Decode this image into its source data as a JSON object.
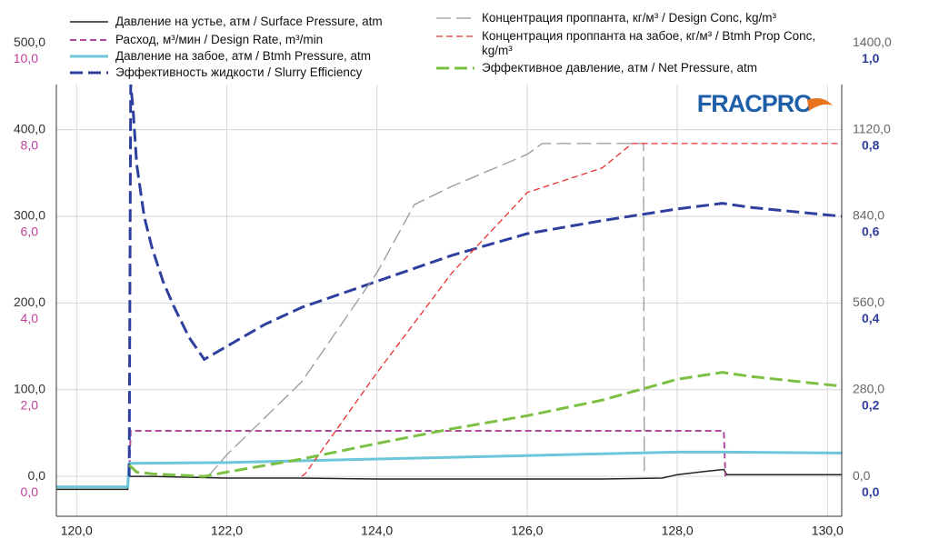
{
  "logo": "FRACPRO",
  "chart_data": {
    "type": "line",
    "grid": true,
    "xlim": [
      119.73,
      130.19
    ],
    "xticks": [
      {
        "value": 120,
        "label": "120,0"
      },
      {
        "value": 122,
        "label": "122,0"
      },
      {
        "value": 124,
        "label": "124,0"
      },
      {
        "value": 126,
        "label": "126,0"
      },
      {
        "value": 128,
        "label": "128,0"
      },
      {
        "value": 130,
        "label": "130,0"
      }
    ],
    "ylim": [
      -46,
      452
    ],
    "yticks": [
      {
        "value": 0,
        "label": "0,0"
      },
      {
        "value": 100,
        "label": "100,0"
      },
      {
        "value": 200,
        "label": "200,0"
      },
      {
        "value": 300,
        "label": "300,0"
      },
      {
        "value": 400,
        "label": "400,0"
      },
      {
        "value": 500,
        "label": "500,0"
      }
    ],
    "ylim_rate": [
      -0.92,
      9.04
    ],
    "yticks_rate": [
      {
        "value": 0,
        "label": "0,0"
      },
      {
        "value": 2,
        "label": "2,0"
      },
      {
        "value": 4,
        "label": "4,0"
      },
      {
        "value": 6,
        "label": "6,0"
      },
      {
        "value": 8,
        "label": "8,0"
      },
      {
        "value": 10,
        "label": "10,0"
      }
    ],
    "y2lim": [
      -128.8,
      1265.6
    ],
    "y2ticks": [
      {
        "value": 0,
        "label": "0,0"
      },
      {
        "value": 280,
        "label": "280,0"
      },
      {
        "value": 560,
        "label": "560,0"
      },
      {
        "value": 840,
        "label": "840,0"
      },
      {
        "value": 1120,
        "label": "1120,0"
      },
      {
        "value": 1400,
        "label": "1400,0"
      }
    ],
    "y3lim": [
      -0.092,
      0.904
    ],
    "y3ticks": [
      {
        "value": 0,
        "label": "0,0"
      },
      {
        "value": 0.2,
        "label": "0,2"
      },
      {
        "value": 0.4,
        "label": "0,4"
      },
      {
        "value": 0.6,
        "label": "0,6"
      },
      {
        "value": 0.8,
        "label": "0,8"
      },
      {
        "value": 1,
        "label": "1,0"
      }
    ],
    "series": [
      {
        "name": "Давление на устье, атм / Surface Pressure, atm",
        "color": "#222222",
        "line_style": "solid",
        "axis": "y",
        "x": [
          119.73,
          120.68,
          120.7,
          121,
          122,
          123,
          124,
          126,
          127,
          127.8,
          128,
          128.4,
          128.62,
          128.66,
          130.19
        ],
        "values": [
          -15,
          -15,
          0,
          0,
          -2,
          -2,
          -3,
          -3,
          -3,
          -2,
          2,
          6,
          8,
          2,
          2
        ]
      },
      {
        "name": "Расход, м³/мин / Design Rate, m³/min",
        "color": "#b04aa0",
        "line_style": "dashed",
        "axis": "y_rate",
        "x": [
          120.7,
          120.72,
          128.62,
          128.64
        ],
        "values": [
          0,
          1.05,
          1.05,
          0
        ]
      },
      {
        "name": "Давление на забое, атм / Btmh Pressure, atm",
        "color": "#6cc6d9",
        "line_style": "solid",
        "axis": "y",
        "x": [
          119.73,
          120.68,
          120.7,
          122,
          124,
          126,
          128,
          128.6,
          130.19
        ],
        "values": [
          -12,
          -12,
          15,
          16,
          20,
          24,
          28,
          28,
          27
        ]
      },
      {
        "name": "Эффективность жидкости / Slurry Efficiency",
        "color": "#2e3f9e",
        "line_style": "dashed",
        "axis": "y3",
        "x": [
          120.7,
          120.72,
          120.75,
          120.8,
          120.9,
          121,
          121.15,
          121.3,
          121.5,
          121.7,
          122,
          122.5,
          123,
          124,
          125,
          126,
          127,
          128,
          128.6,
          129,
          130.19
        ],
        "values": [
          0,
          0.904,
          0.85,
          0.72,
          0.6,
          0.53,
          0.45,
          0.39,
          0.32,
          0.27,
          0.3,
          0.35,
          0.39,
          0.45,
          0.51,
          0.56,
          0.59,
          0.617,
          0.63,
          0.62,
          0.6
        ]
      },
      {
        "name": "Концентрация проппанта, кг/м³ / Design Conc, kg/m³",
        "color": "#999999",
        "line_style": "dashed",
        "axis": "y2",
        "x": [
          121.75,
          122,
          123,
          124,
          124.5,
          125,
          126,
          126.2,
          127.55,
          127.56
        ],
        "values": [
          0,
          70,
          306,
          658,
          878,
          937,
          1040,
          1075,
          1075,
          0
        ]
      },
      {
        "name": "Концентрация проппанта на забое, кг/м³ / Btmh Prop Conc, kg/m³",
        "color": "#e83030",
        "line_style": "dashed",
        "axis": "y2",
        "x": [
          123,
          123.05,
          124,
          125,
          125.8,
          126,
          127,
          127.4,
          130.19
        ],
        "values": [
          0,
          10,
          335,
          658,
          864,
          917,
          996,
          1075,
          1075
        ]
      },
      {
        "name": "Эффективное давление, атм / Net Pressure, atm",
        "color": "#7cc043",
        "line_style": "dashed",
        "axis": "y",
        "x": [
          120.7,
          120.8,
          121,
          121.7,
          122,
          123,
          124,
          125,
          126,
          127,
          128,
          128.6,
          129,
          130.19
        ],
        "values": [
          13,
          5,
          3,
          0,
          5,
          20,
          38,
          55,
          70,
          88,
          112,
          120,
          115,
          104
        ]
      }
    ]
  }
}
